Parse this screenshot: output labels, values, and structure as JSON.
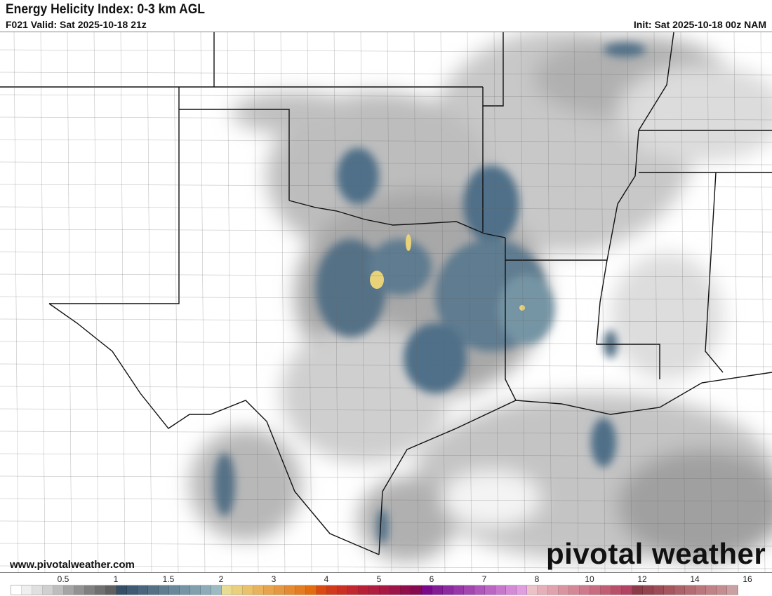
{
  "header": {
    "title": "Energy Helicity Index: 0-3 km AGL",
    "valid": "F021 Valid: Sat 2025-10-18 21z",
    "init": "Init: Sat 2025-10-18 00z NAM"
  },
  "footer": {
    "website": "www.pivotalweather.com",
    "logo": "pivotal weather"
  },
  "colorbar": {
    "labels": [
      "0.5",
      "1",
      "1.5",
      "2",
      "3",
      "4",
      "5",
      "6",
      "7",
      "8",
      "10",
      "12",
      "14",
      "16"
    ],
    "label_values": [
      0.5,
      1,
      1.5,
      2,
      3,
      4,
      5,
      6,
      7,
      8,
      10,
      12,
      14,
      16
    ],
    "colors": [
      "#ffffff",
      "#efefef",
      "#e0e0e0",
      "#d0d0d0",
      "#bdbdbd",
      "#a5a5a5",
      "#929292",
      "#808080",
      "#707070",
      "#606060",
      "#354f66",
      "#3f5a72",
      "#4a657c",
      "#557186",
      "#5f7c90",
      "#6a889a",
      "#7594a4",
      "#81a0ae",
      "#8dacb8",
      "#9bbac4",
      "#e8dc92",
      "#ead07c",
      "#ebc26c",
      "#e9b25c",
      "#e7a44c",
      "#e59840",
      "#e58a30",
      "#e47c22",
      "#e26c10",
      "#dc4a14",
      "#d23a1e",
      "#ca3024",
      "#c22830",
      "#b82038",
      "#b01e40",
      "#a81a44",
      "#9c1448",
      "#900e4c",
      "#860a50",
      "#7a0a8a",
      "#841c96",
      "#8e2aa0",
      "#9838a8",
      "#a446b0",
      "#b056ba",
      "#bc66c4",
      "#c878cc",
      "#d48ad6",
      "#e09ee0",
      "#ecc2c8",
      "#e6b0b8",
      "#e0a2ac",
      "#da94a0",
      "#d48896",
      "#ce7a8c",
      "#c86c80",
      "#c05e74",
      "#b8506a",
      "#b04462",
      "#8c3c48",
      "#94444e",
      "#9c4c56",
      "#a4585e",
      "#ac6268",
      "#b46c72",
      "#ba787c",
      "#c08286",
      "#c48e90",
      "#caa0a2"
    ]
  },
  "map": {
    "shading_colors": {
      "light": "#e6e6e6",
      "mid": "#b8b8b8",
      "dark": "#7a7a7a",
      "blue": "#4f6f88",
      "lightblue": "#9bbac4",
      "yellow": "#e8d27a"
    }
  }
}
